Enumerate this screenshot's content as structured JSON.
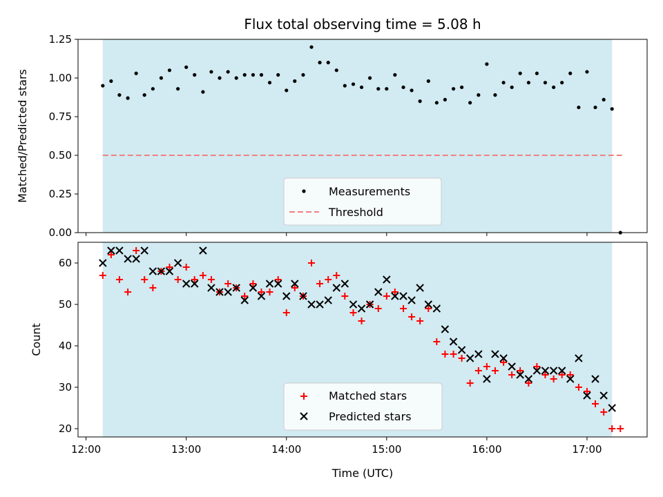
{
  "chart_data": [
    {
      "type": "scatter",
      "title": "Flux total observing time = 5.08 h",
      "xlabel": "",
      "ylabel": "Matched/Predicted stars",
      "ylim": [
        0.0,
        1.25
      ],
      "yticks": [
        "0.00",
        "0.25",
        "0.50",
        "0.75",
        "1.00",
        "1.25"
      ],
      "shaded_span": [
        "12:10",
        "17:15"
      ],
      "shade_color": "#add8e6",
      "threshold": 0.5,
      "threshold_color": "#f08080",
      "legend": {
        "position": "lower-center",
        "entries": [
          "Measurements",
          "Threshold"
        ]
      },
      "x_hours": [
        12.167,
        12.25,
        12.333,
        12.417,
        12.5,
        12.583,
        12.667,
        12.75,
        12.833,
        12.917,
        13.0,
        13.083,
        13.167,
        13.25,
        13.333,
        13.417,
        13.5,
        13.583,
        13.667,
        13.75,
        13.833,
        13.917,
        14.0,
        14.083,
        14.167,
        14.25,
        14.333,
        14.417,
        14.5,
        14.583,
        14.667,
        14.75,
        14.833,
        14.917,
        15.0,
        15.083,
        15.167,
        15.25,
        15.333,
        15.417,
        15.5,
        15.583,
        15.667,
        15.75,
        15.833,
        15.917,
        16.0,
        16.083,
        16.167,
        16.25,
        16.333,
        16.417,
        16.5,
        16.583,
        16.667,
        16.75,
        16.833,
        16.917,
        17.0,
        17.083,
        17.167,
        17.25,
        17.333
      ],
      "values": [
        0.95,
        0.98,
        0.89,
        0.87,
        1.03,
        0.89,
        0.93,
        1.0,
        1.05,
        0.93,
        1.07,
        1.02,
        0.91,
        1.04,
        1.0,
        1.04,
        1.0,
        1.02,
        1.02,
        1.02,
        0.97,
        1.02,
        0.92,
        0.98,
        1.02,
        1.2,
        1.1,
        1.1,
        1.05,
        0.95,
        0.96,
        0.94,
        1.0,
        0.93,
        0.93,
        1.02,
        0.94,
        0.92,
        0.85,
        0.98,
        0.84,
        0.86,
        0.93,
        0.94,
        0.84,
        0.89,
        1.09,
        0.89,
        0.97,
        0.94,
        1.03,
        0.97,
        1.03,
        0.97,
        0.94,
        0.97,
        1.03,
        0.81,
        1.04,
        0.81,
        0.86,
        0.8,
        0.0
      ]
    },
    {
      "type": "scatter",
      "title": "",
      "xlabel": "Time (UTC)",
      "ylabel": "Count",
      "xticks": [
        "12:00",
        "13:00",
        "14:00",
        "15:00",
        "16:00",
        "17:00"
      ],
      "yticks": [
        "20",
        "30",
        "40",
        "50",
        "60"
      ],
      "ylim": [
        18,
        65
      ],
      "legend": {
        "position": "lower-center",
        "entries": [
          "Matched stars",
          "Predicted stars"
        ]
      },
      "series": [
        {
          "name": "Matched stars",
          "marker": "plus",
          "color": "#ff0000",
          "x_hours": [
            12.167,
            12.25,
            12.333,
            12.417,
            12.5,
            12.583,
            12.667,
            12.75,
            12.833,
            12.917,
            13.0,
            13.083,
            13.167,
            13.25,
            13.333,
            13.417,
            13.5,
            13.583,
            13.667,
            13.75,
            13.833,
            13.917,
            14.0,
            14.083,
            14.167,
            14.25,
            14.333,
            14.417,
            14.5,
            14.583,
            14.667,
            14.75,
            14.833,
            14.917,
            15.0,
            15.083,
            15.167,
            15.25,
            15.333,
            15.417,
            15.5,
            15.583,
            15.667,
            15.75,
            15.833,
            15.917,
            16.0,
            16.083,
            16.167,
            16.25,
            16.333,
            16.417,
            16.5,
            16.583,
            16.667,
            16.75,
            16.833,
            16.917,
            17.0,
            17.083,
            17.167,
            17.25,
            17.333
          ],
          "values": [
            57,
            62,
            56,
            53,
            63,
            56,
            54,
            58,
            59,
            56,
            59,
            56,
            57,
            56,
            53,
            55,
            54,
            52,
            55,
            53,
            53,
            56,
            48,
            54,
            52,
            60,
            55,
            56,
            57,
            52,
            48,
            46,
            50,
            49,
            52,
            53,
            49,
            47,
            46,
            49,
            41,
            38,
            38,
            37,
            31,
            34,
            35,
            34,
            36,
            33,
            34,
            31,
            35,
            33,
            32,
            33,
            33,
            30,
            29,
            26,
            24,
            20,
            20
          ]
        },
        {
          "name": "Predicted stars",
          "marker": "x",
          "color": "#000000",
          "x_hours": [
            12.167,
            12.25,
            12.333,
            12.417,
            12.5,
            12.583,
            12.667,
            12.75,
            12.833,
            12.917,
            13.0,
            13.083,
            13.167,
            13.25,
            13.333,
            13.417,
            13.5,
            13.583,
            13.667,
            13.75,
            13.833,
            13.917,
            14.0,
            14.083,
            14.167,
            14.25,
            14.333,
            14.417,
            14.5,
            14.583,
            14.667,
            14.75,
            14.833,
            14.917,
            15.0,
            15.083,
            15.167,
            15.25,
            15.333,
            15.417,
            15.5,
            15.583,
            15.667,
            15.75,
            15.833,
            15.917,
            16.0,
            16.083,
            16.167,
            16.25,
            16.333,
            16.417,
            16.5,
            16.583,
            16.667,
            16.75,
            16.833,
            16.917,
            17.0,
            17.083,
            17.167,
            17.25
          ],
          "values": [
            60,
            63,
            63,
            61,
            61,
            63,
            58,
            58,
            58,
            60,
            55,
            55,
            63,
            54,
            53,
            53,
            54,
            51,
            54,
            52,
            55,
            55,
            52,
            55,
            52,
            50,
            50,
            51,
            54,
            55,
            50,
            49,
            50,
            53,
            56,
            52,
            52,
            51,
            54,
            50,
            49,
            44,
            41,
            39,
            37,
            38,
            32,
            38,
            37,
            35,
            33,
            32,
            34,
            34,
            34,
            34,
            32,
            37,
            28,
            32,
            28,
            25
          ]
        }
      ]
    }
  ]
}
